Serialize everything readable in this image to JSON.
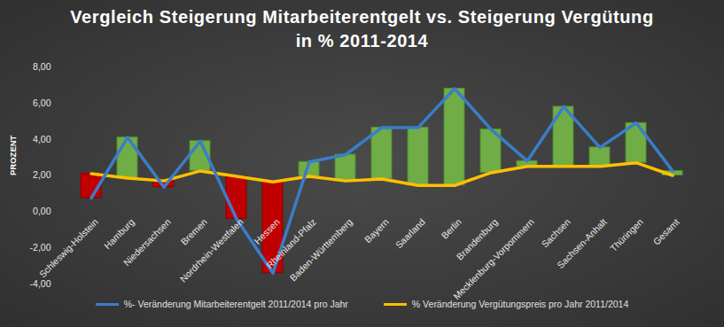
{
  "chart_data": {
    "type": "line",
    "title": "Vergleich Steigerung Mitarbeiterentgelt vs. Steigerung Vergütung in % 2011-2014",
    "y_label": "PROZENT",
    "categories": [
      "Schleswig-Holstein",
      "Hamburg",
      "Niedersachsen",
      "Bremen",
      "Nordrhein-Westfalen",
      "Hessen",
      "Rheinland-Pfalz",
      "Baden-Württemberg",
      "Bayern",
      "Saarland",
      "Berlin",
      "Brandenburg",
      "Mecklenburg-Vorpommern",
      "Sachsen",
      "Sachsen-Anhalt",
      "Thüringen",
      "Gesamt"
    ],
    "series": [
      {
        "name": "%- Veränderung Mitarbeiterentgelt 2011/2014 pro Jahr",
        "color": "#3a7dc9",
        "values": [
          0.75,
          4.1,
          1.35,
          3.9,
          -0.4,
          -3.4,
          2.75,
          3.15,
          4.65,
          4.65,
          6.8,
          4.55,
          2.8,
          5.8,
          3.55,
          4.9,
          2.25
        ]
      },
      {
        "name": "% Veränderung Vergütungspreis pro Jahr 2011/2014",
        "color": "#ffc000",
        "values": [
          2.1,
          1.85,
          1.7,
          2.25,
          1.95,
          1.65,
          1.95,
          1.7,
          1.8,
          1.45,
          1.45,
          2.15,
          2.5,
          2.5,
          2.5,
          2.7,
          2.0
        ]
      }
    ],
    "ylim": [
      -4,
      8
    ],
    "yticks": [
      {
        "value": -4,
        "label": "-4,00"
      },
      {
        "value": -2,
        "label": "-2,00"
      },
      {
        "value": 0,
        "label": "0,00"
      },
      {
        "value": 2,
        "label": "2,00"
      },
      {
        "value": 4,
        "label": "4,00"
      },
      {
        "value": 6,
        "label": "6,00"
      },
      {
        "value": 8,
        "label": "8,00"
      }
    ],
    "grid": false,
    "legend": "bottom"
  }
}
